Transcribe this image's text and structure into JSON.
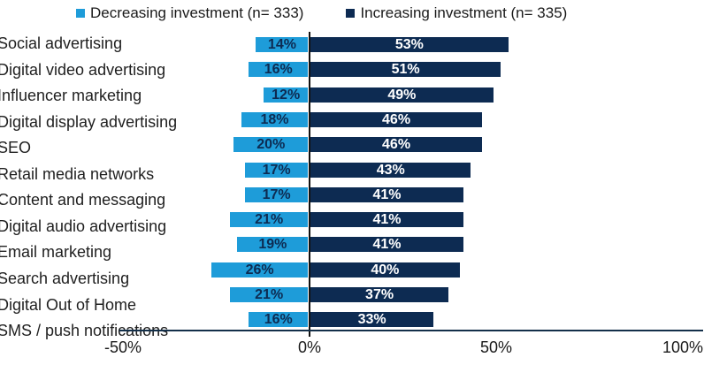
{
  "legend": {
    "items": [
      {
        "label": "Decreasing investment (n= 333)",
        "color": "#1E9CD9"
      },
      {
        "label": "Increasing investment (n= 335)",
        "color": "#0D2B52"
      }
    ]
  },
  "chart_data": {
    "type": "bar",
    "orientation": "horizontal-diverging",
    "title": "",
    "categories": [
      "Social advertising",
      "Digital video advertising",
      "Influencer marketing",
      "Digital display advertising",
      "SEO",
      "Retail media networks",
      "Content and messaging",
      "Digital audio advertising",
      "Email marketing",
      "Search advertising",
      "Digital Out of Home",
      "SMS / push notifications"
    ],
    "series": [
      {
        "name": "Decreasing investment (n= 333)",
        "color": "#1E9CD9",
        "label_color": "#0D2B52",
        "direction": "negative",
        "values": [
          14,
          16,
          12,
          18,
          20,
          17,
          17,
          21,
          19,
          26,
          21,
          16
        ]
      },
      {
        "name": "Increasing investment (n= 335)",
        "color": "#0D2B52",
        "label_color": "#FFFFFF",
        "direction": "positive",
        "values": [
          53,
          51,
          49,
          46,
          46,
          43,
          41,
          41,
          41,
          40,
          37,
          33
        ]
      }
    ],
    "value_suffix": "%",
    "x_axis": {
      "tick_labels": [
        "-50%",
        "0%",
        "50%",
        "100%"
      ],
      "tick_values": [
        -50,
        0,
        50,
        100
      ],
      "range": [
        -50,
        100
      ]
    },
    "grid": false,
    "legend_position": "top"
  },
  "colors": {
    "background": "#FFFFFF",
    "text": "#1A1A1A",
    "zero_line": "#111111",
    "axis_line": "#14304A"
  }
}
